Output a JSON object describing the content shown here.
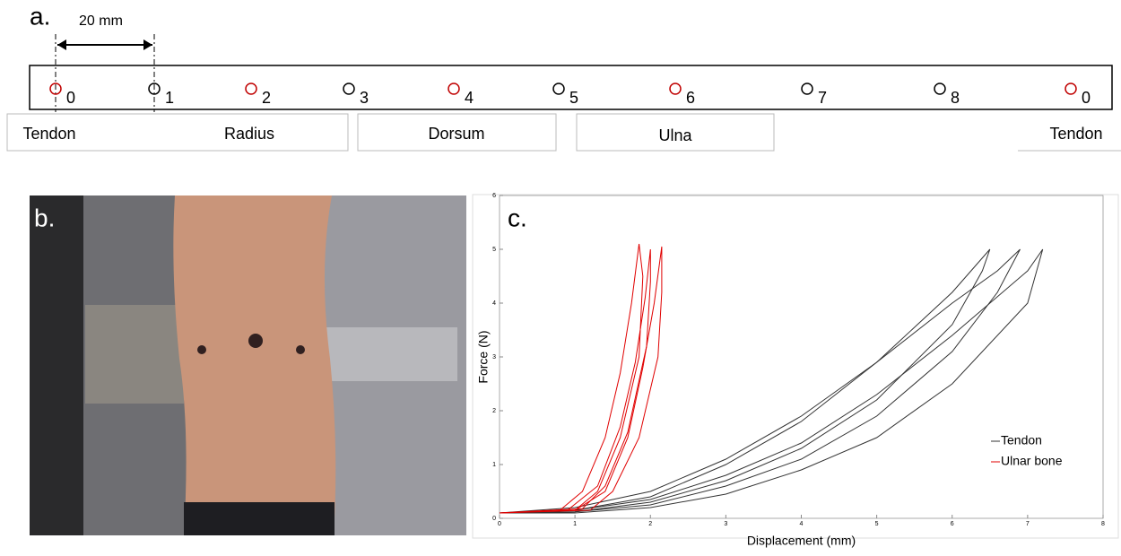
{
  "panel_a": {
    "label": "a.",
    "dimension": "20 mm",
    "markers": [
      {
        "label": "0",
        "color": "#c00000"
      },
      {
        "label": "1",
        "color": "#000000"
      },
      {
        "label": "2",
        "color": "#c00000"
      },
      {
        "label": "3",
        "color": "#000000"
      },
      {
        "label": "4",
        "color": "#c00000"
      },
      {
        "label": "5",
        "color": "#000000"
      },
      {
        "label": "6",
        "color": "#c00000"
      },
      {
        "label": "7",
        "color": "#000000"
      },
      {
        "label": "8",
        "color": "#000000"
      },
      {
        "label": "0",
        "color": "#c00000"
      }
    ],
    "regions": [
      "Tendon",
      "Radius",
      "Dorsum",
      "Ulna",
      "Tendon"
    ]
  },
  "panel_b": {
    "label": "b."
  },
  "chart_data": {
    "type": "line",
    "panel_label": "c.",
    "x_label": "Displacement (mm)",
    "y_label": "Force (N)",
    "xlim": [
      0,
      8
    ],
    "ylim": [
      0,
      6
    ],
    "xticks": [
      0,
      1,
      2,
      3,
      4,
      5,
      6,
      7,
      8
    ],
    "yticks": [
      0,
      1,
      2,
      3,
      4,
      5,
      6
    ],
    "series": [
      {
        "name": "Tendon",
        "color": "#333333",
        "curves": [
          {
            "x": [
              0,
              1,
              2,
              3,
              4,
              5,
              6,
              6.5,
              6.4,
              6,
              5,
              4,
              3,
              2,
              1,
              0
            ],
            "values": [
              0.1,
              0.15,
              0.4,
              1.0,
              1.8,
              2.9,
              4.2,
              5.0,
              4.6,
              3.6,
              2.2,
              1.3,
              0.7,
              0.3,
              0.12,
              0.1
            ]
          },
          {
            "x": [
              0,
              1,
              2,
              3,
              4,
              5,
              6,
              6.6,
              6.9,
              6.6,
              6,
              5,
              4,
              3,
              2,
              1,
              0
            ],
            "values": [
              0.1,
              0.2,
              0.5,
              1.1,
              1.9,
              2.9,
              4.0,
              4.6,
              5.0,
              4.2,
              3.1,
              1.9,
              1.1,
              0.6,
              0.25,
              0.12,
              0.1
            ]
          },
          {
            "x": [
              0,
              1,
              2,
              3,
              4,
              5,
              6,
              7,
              7.2,
              7.0,
              6,
              5,
              4,
              3,
              2,
              1,
              0
            ],
            "values": [
              0.1,
              0.15,
              0.35,
              0.8,
              1.4,
              2.3,
              3.4,
              4.6,
              5.0,
              4.0,
              2.5,
              1.5,
              0.9,
              0.45,
              0.2,
              0.1,
              0.1
            ]
          }
        ]
      },
      {
        "name": "Ulnar bone",
        "color": "#e00000",
        "curves": [
          {
            "x": [
              0,
              0.8,
              1.1,
              1.4,
              1.6,
              1.75,
              1.85,
              1.9,
              1.85,
              1.6,
              1.3,
              1,
              0
            ],
            "values": [
              0.1,
              0.15,
              0.5,
              1.5,
              2.7,
              4.0,
              5.1,
              4.5,
              3.0,
              1.5,
              0.5,
              0.15,
              0.1
            ]
          },
          {
            "x": [
              0,
              0.9,
              1.3,
              1.6,
              1.8,
              1.93,
              2.0,
              2.0,
              1.95,
              1.7,
              1.4,
              1.1,
              0
            ],
            "values": [
              0.1,
              0.15,
              0.6,
              1.7,
              2.9,
              4.1,
              5.0,
              4.4,
              3.2,
              1.6,
              0.6,
              0.18,
              0.1
            ]
          },
          {
            "x": [
              0,
              1,
              1.4,
              1.7,
              1.9,
              2.05,
              2.15,
              2.15,
              2.1,
              1.85,
              1.5,
              1.2,
              0
            ],
            "values": [
              0.1,
              0.15,
              0.5,
              1.5,
              2.8,
              4.0,
              5.05,
              4.2,
              3.0,
              1.5,
              0.5,
              0.15,
              0.1
            ]
          }
        ]
      }
    ]
  }
}
